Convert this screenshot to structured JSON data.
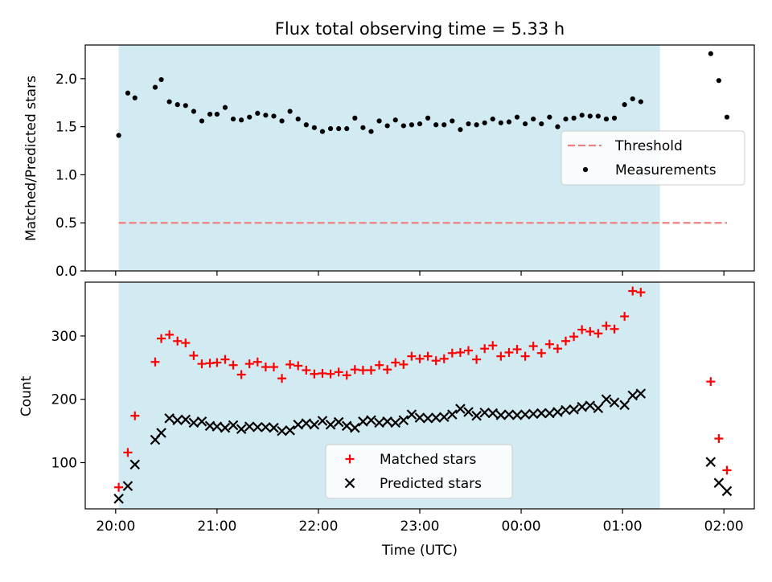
{
  "chart_data": [
    {
      "type": "scatter",
      "title": "Flux total observing time = 5.33 h",
      "ylabel": "Matched/Predicted stars",
      "xlabel": "",
      "x_unit": "hours since 20:00 UTC",
      "xlim": [
        -0.3,
        6.3
      ],
      "ylim": [
        0.0,
        2.35
      ],
      "yticks": [
        0.0,
        0.5,
        1.0,
        1.5,
        2.0
      ],
      "ytick_labels": [
        "0.0",
        "0.5",
        "1.0",
        "1.5",
        "2.0"
      ],
      "shaded_span": {
        "x0": 0.03,
        "x1": 5.37,
        "color": "#add8e6"
      },
      "legend": {
        "loc": "center right",
        "entries": [
          "Threshold",
          "Measurements"
        ]
      },
      "threshold": {
        "name": "Threshold",
        "x": [
          0.03,
          6.03
        ],
        "y": [
          0.5,
          0.5
        ],
        "color": "#f08080",
        "style": "dashed"
      },
      "series": [
        {
          "name": "Measurements",
          "marker": "dot",
          "color": "#000000",
          "points": [
            [
              0.03,
              1.41
            ],
            [
              0.12,
              1.85
            ],
            [
              0.19,
              1.8
            ],
            [
              0.39,
              1.91
            ],
            [
              0.45,
              1.99
            ],
            [
              0.53,
              1.76
            ],
            [
              0.61,
              1.73
            ],
            [
              0.69,
              1.72
            ],
            [
              0.77,
              1.66
            ],
            [
              0.85,
              1.56
            ],
            [
              0.93,
              1.63
            ],
            [
              1.0,
              1.63
            ],
            [
              1.08,
              1.7
            ],
            [
              1.16,
              1.58
            ],
            [
              1.24,
              1.57
            ],
            [
              1.32,
              1.6
            ],
            [
              1.4,
              1.64
            ],
            [
              1.48,
              1.62
            ],
            [
              1.56,
              1.61
            ],
            [
              1.64,
              1.56
            ],
            [
              1.72,
              1.66
            ],
            [
              1.8,
              1.58
            ],
            [
              1.88,
              1.52
            ],
            [
              1.96,
              1.49
            ],
            [
              2.04,
              1.45
            ],
            [
              2.12,
              1.48
            ],
            [
              2.2,
              1.48
            ],
            [
              2.28,
              1.48
            ],
            [
              2.36,
              1.59
            ],
            [
              2.44,
              1.49
            ],
            [
              2.52,
              1.45
            ],
            [
              2.6,
              1.56
            ],
            [
              2.68,
              1.51
            ],
            [
              2.76,
              1.57
            ],
            [
              2.84,
              1.51
            ],
            [
              2.92,
              1.52
            ],
            [
              3.0,
              1.53
            ],
            [
              3.08,
              1.59
            ],
            [
              3.16,
              1.52
            ],
            [
              3.24,
              1.52
            ],
            [
              3.32,
              1.56
            ],
            [
              3.4,
              1.47
            ],
            [
              3.48,
              1.53
            ],
            [
              3.56,
              1.52
            ],
            [
              3.64,
              1.54
            ],
            [
              3.72,
              1.58
            ],
            [
              3.8,
              1.54
            ],
            [
              3.88,
              1.55
            ],
            [
              3.96,
              1.6
            ],
            [
              4.04,
              1.53
            ],
            [
              4.12,
              1.58
            ],
            [
              4.2,
              1.53
            ],
            [
              4.28,
              1.6
            ],
            [
              4.36,
              1.5
            ],
            [
              4.44,
              1.58
            ],
            [
              4.52,
              1.59
            ],
            [
              4.6,
              1.62
            ],
            [
              4.68,
              1.61
            ],
            [
              4.76,
              1.61
            ],
            [
              4.84,
              1.58
            ],
            [
              4.92,
              1.59
            ],
            [
              5.02,
              1.73
            ],
            [
              5.1,
              1.79
            ],
            [
              5.18,
              1.76
            ],
            [
              5.87,
              2.26
            ],
            [
              5.95,
              1.98
            ],
            [
              6.03,
              1.6
            ]
          ]
        }
      ]
    },
    {
      "type": "scatter",
      "title": "",
      "ylabel": "Count",
      "xlabel": "Time (UTC)",
      "x_unit": "hours since 20:00 UTC",
      "xlim": [
        -0.3,
        6.3
      ],
      "ylim": [
        27,
        385
      ],
      "xticks": [
        0,
        1,
        2,
        3,
        4,
        5,
        6
      ],
      "xtick_labels": [
        "20:00",
        "21:00",
        "22:00",
        "23:00",
        "00:00",
        "01:00",
        "02:00"
      ],
      "yticks": [
        100,
        200,
        300
      ],
      "ytick_labels": [
        "100",
        "200",
        "300"
      ],
      "shaded_span": {
        "x0": 0.03,
        "x1": 5.37,
        "color": "#add8e6"
      },
      "legend": {
        "loc": "lower center",
        "entries": [
          "Matched stars",
          "Predicted stars"
        ]
      },
      "series": [
        {
          "name": "Matched stars",
          "marker": "plus",
          "color": "#ff0000",
          "points": [
            [
              0.03,
              61
            ],
            [
              0.12,
              116
            ],
            [
              0.19,
              174
            ],
            [
              0.39,
              259
            ],
            [
              0.45,
              296
            ],
            [
              0.53,
              302
            ],
            [
              0.61,
              292
            ],
            [
              0.69,
              289
            ],
            [
              0.77,
              269
            ],
            [
              0.85,
              256
            ],
            [
              0.93,
              257
            ],
            [
              1.0,
              258
            ],
            [
              1.08,
              263
            ],
            [
              1.16,
              254
            ],
            [
              1.24,
              239
            ],
            [
              1.32,
              256
            ],
            [
              1.4,
              259
            ],
            [
              1.48,
              251
            ],
            [
              1.56,
              251
            ],
            [
              1.64,
              233
            ],
            [
              1.72,
              255
            ],
            [
              1.8,
              253
            ],
            [
              1.88,
              246
            ],
            [
              1.96,
              240
            ],
            [
              2.04,
              241
            ],
            [
              2.12,
              240
            ],
            [
              2.2,
              243
            ],
            [
              2.28,
              238
            ],
            [
              2.36,
              247
            ],
            [
              2.44,
              246
            ],
            [
              2.52,
              246
            ],
            [
              2.6,
              254
            ],
            [
              2.68,
              247
            ],
            [
              2.76,
              258
            ],
            [
              2.84,
              255
            ],
            [
              2.92,
              268
            ],
            [
              3.0,
              264
            ],
            [
              3.08,
              268
            ],
            [
              3.16,
              261
            ],
            [
              3.24,
              264
            ],
            [
              3.32,
              273
            ],
            [
              3.4,
              274
            ],
            [
              3.48,
              277
            ],
            [
              3.56,
              263
            ],
            [
              3.64,
              280
            ],
            [
              3.72,
              285
            ],
            [
              3.8,
              268
            ],
            [
              3.88,
              274
            ],
            [
              3.96,
              279
            ],
            [
              4.04,
              268
            ],
            [
              4.12,
              284
            ],
            [
              4.2,
              273
            ],
            [
              4.28,
              287
            ],
            [
              4.36,
              280
            ],
            [
              4.44,
              292
            ],
            [
              4.52,
              299
            ],
            [
              4.6,
              310
            ],
            [
              4.68,
              307
            ],
            [
              4.76,
              304
            ],
            [
              4.84,
              316
            ],
            [
              4.92,
              311
            ],
            [
              5.02,
              331
            ],
            [
              5.1,
              371
            ],
            [
              5.18,
              369
            ],
            [
              5.87,
              228
            ],
            [
              5.95,
              138
            ],
            [
              6.03,
              88
            ]
          ]
        },
        {
          "name": "Predicted stars",
          "marker": "x",
          "color": "#000000",
          "points": [
            [
              0.03,
              43
            ],
            [
              0.12,
              63
            ],
            [
              0.19,
              97
            ],
            [
              0.39,
              136
            ],
            [
              0.45,
              147
            ],
            [
              0.53,
              170
            ],
            [
              0.61,
              167
            ],
            [
              0.69,
              168
            ],
            [
              0.77,
              163
            ],
            [
              0.85,
              165
            ],
            [
              0.93,
              158
            ],
            [
              1.0,
              157
            ],
            [
              1.08,
              155
            ],
            [
              1.16,
              159
            ],
            [
              1.24,
              153
            ],
            [
              1.32,
              157
            ],
            [
              1.4,
              156
            ],
            [
              1.48,
              156
            ],
            [
              1.56,
              155
            ],
            [
              1.64,
              150
            ],
            [
              1.72,
              151
            ],
            [
              1.8,
              160
            ],
            [
              1.88,
              162
            ],
            [
              1.96,
              160
            ],
            [
              2.04,
              166
            ],
            [
              2.12,
              160
            ],
            [
              2.2,
              164
            ],
            [
              2.28,
              158
            ],
            [
              2.36,
              155
            ],
            [
              2.44,
              165
            ],
            [
              2.52,
              167
            ],
            [
              2.6,
              163
            ],
            [
              2.68,
              165
            ],
            [
              2.76,
              163
            ],
            [
              2.84,
              167
            ],
            [
              2.92,
              176
            ],
            [
              3.0,
              171
            ],
            [
              3.08,
              170
            ],
            [
              3.16,
              171
            ],
            [
              3.24,
              172
            ],
            [
              3.32,
              176
            ],
            [
              3.4,
              185
            ],
            [
              3.48,
              180
            ],
            [
              3.56,
              174
            ],
            [
              3.64,
              179
            ],
            [
              3.72,
              178
            ],
            [
              3.8,
              175
            ],
            [
              3.88,
              176
            ],
            [
              3.96,
              175
            ],
            [
              4.04,
              176
            ],
            [
              4.12,
              177
            ],
            [
              4.2,
              178
            ],
            [
              4.28,
              178
            ],
            [
              4.36,
              180
            ],
            [
              4.44,
              183
            ],
            [
              4.52,
              184
            ],
            [
              4.6,
              188
            ],
            [
              4.68,
              190
            ],
            [
              4.76,
              186
            ],
            [
              4.84,
              200
            ],
            [
              4.92,
              195
            ],
            [
              5.02,
              191
            ],
            [
              5.1,
              206
            ],
            [
              5.18,
              209
            ],
            [
              5.87,
              101
            ],
            [
              5.95,
              68
            ],
            [
              6.03,
              55
            ]
          ]
        }
      ]
    }
  ]
}
